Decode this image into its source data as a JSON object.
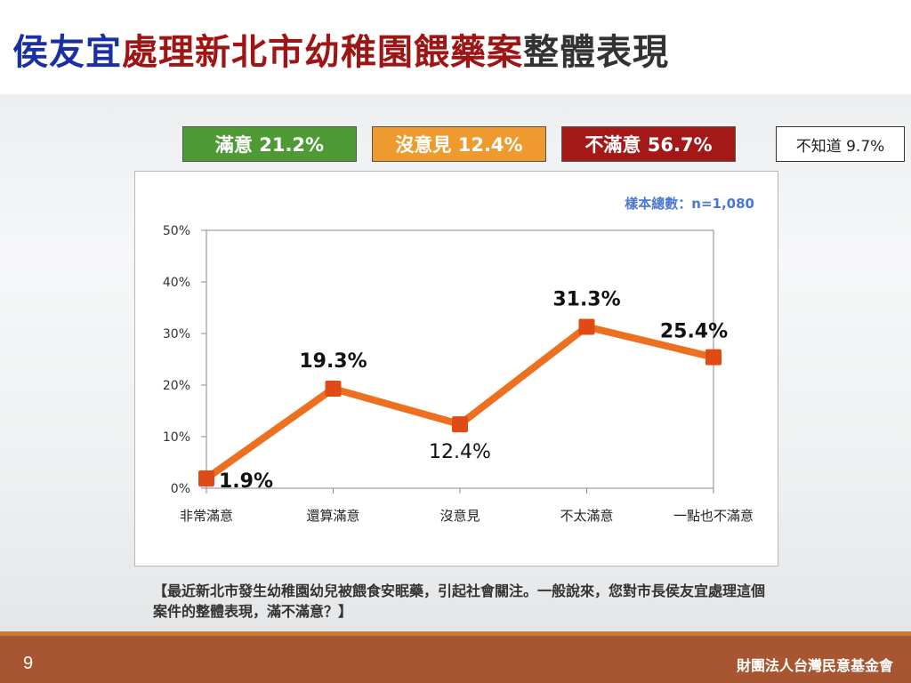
{
  "title": {
    "part1": "侯友宜",
    "part2": "處理新北市幼稚園餵藥案",
    "part3": "整體表現",
    "colors": {
      "part1": "#1a2fa3",
      "part2": "#9e1515",
      "part3": "#333333"
    }
  },
  "summary_boxes": {
    "satisfied": "滿意 21.2%",
    "neutral": "沒意見 12.4%",
    "dissatisfied": "不滿意 56.7%",
    "unknown": "不知道 9.7%"
  },
  "sample_note": "樣本總數：n=1,080",
  "question": "【最近新北市發生幼稚園幼兒被餵食安眠藥，引起社會關注。一般說來，您對市長侯友宜處理這個案件的整體表現，滿不滿意？】",
  "footer": {
    "page": "9",
    "org": "財團法人台灣民意基金會"
  },
  "chart_data": {
    "type": "line",
    "categories": [
      "非常滿意",
      "還算滿意",
      "沒意見",
      "不太滿意",
      "一點也不滿意"
    ],
    "values": [
      1.9,
      19.3,
      12.4,
      31.3,
      25.4
    ],
    "data_labels": [
      "1.9%",
      "19.3%",
      "12.4%",
      "31.3%",
      "25.4%"
    ],
    "ylim": [
      0,
      50
    ],
    "yticks": [
      "0%",
      "10%",
      "20%",
      "30%",
      "40%",
      "50%"
    ],
    "grid": false,
    "colors": {
      "line": "#ec7020",
      "marker": "#e04a14"
    }
  }
}
